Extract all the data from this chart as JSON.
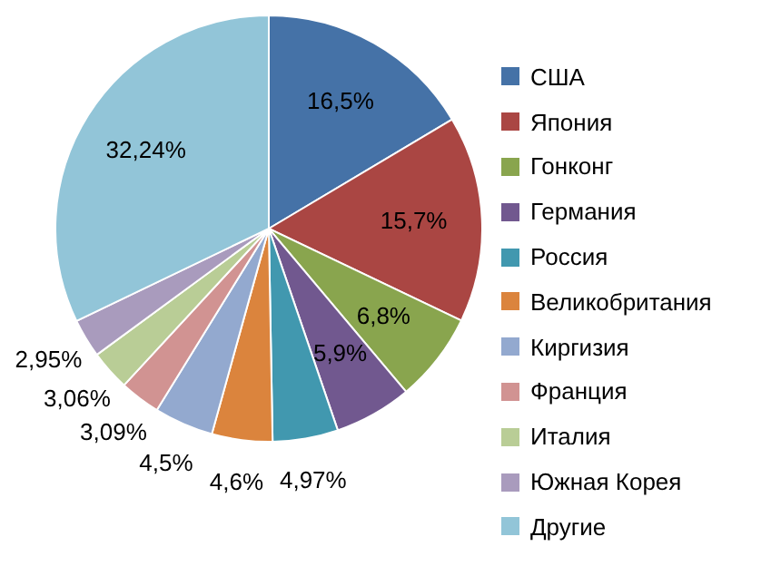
{
  "chart_data": {
    "type": "pie",
    "categories": [
      "США",
      "Япония",
      "Гонконг",
      "Германия",
      "Россия",
      "Великобритания",
      "Киргизия",
      "Франция",
      "Италия",
      "Южная Корея",
      "Другие"
    ],
    "values": [
      16.5,
      15.7,
      6.8,
      5.9,
      4.97,
      4.6,
      4.5,
      3.09,
      3.06,
      2.95,
      32.24
    ],
    "value_labels": [
      "16,5%",
      "15,7%",
      "6,8%",
      "5,9%",
      "4,97%",
      "4,6%",
      "4,5%",
      "3,09%",
      "3,06%",
      "2,95%",
      "32,24%"
    ],
    "colors": [
      "#4572a7",
      "#aa4643",
      "#89a54e",
      "#71588f",
      "#4198af",
      "#db843d",
      "#93a9cf",
      "#d19392",
      "#b9cd96",
      "#a99bbd",
      "#92c5d8"
    ],
    "legend": "right"
  }
}
